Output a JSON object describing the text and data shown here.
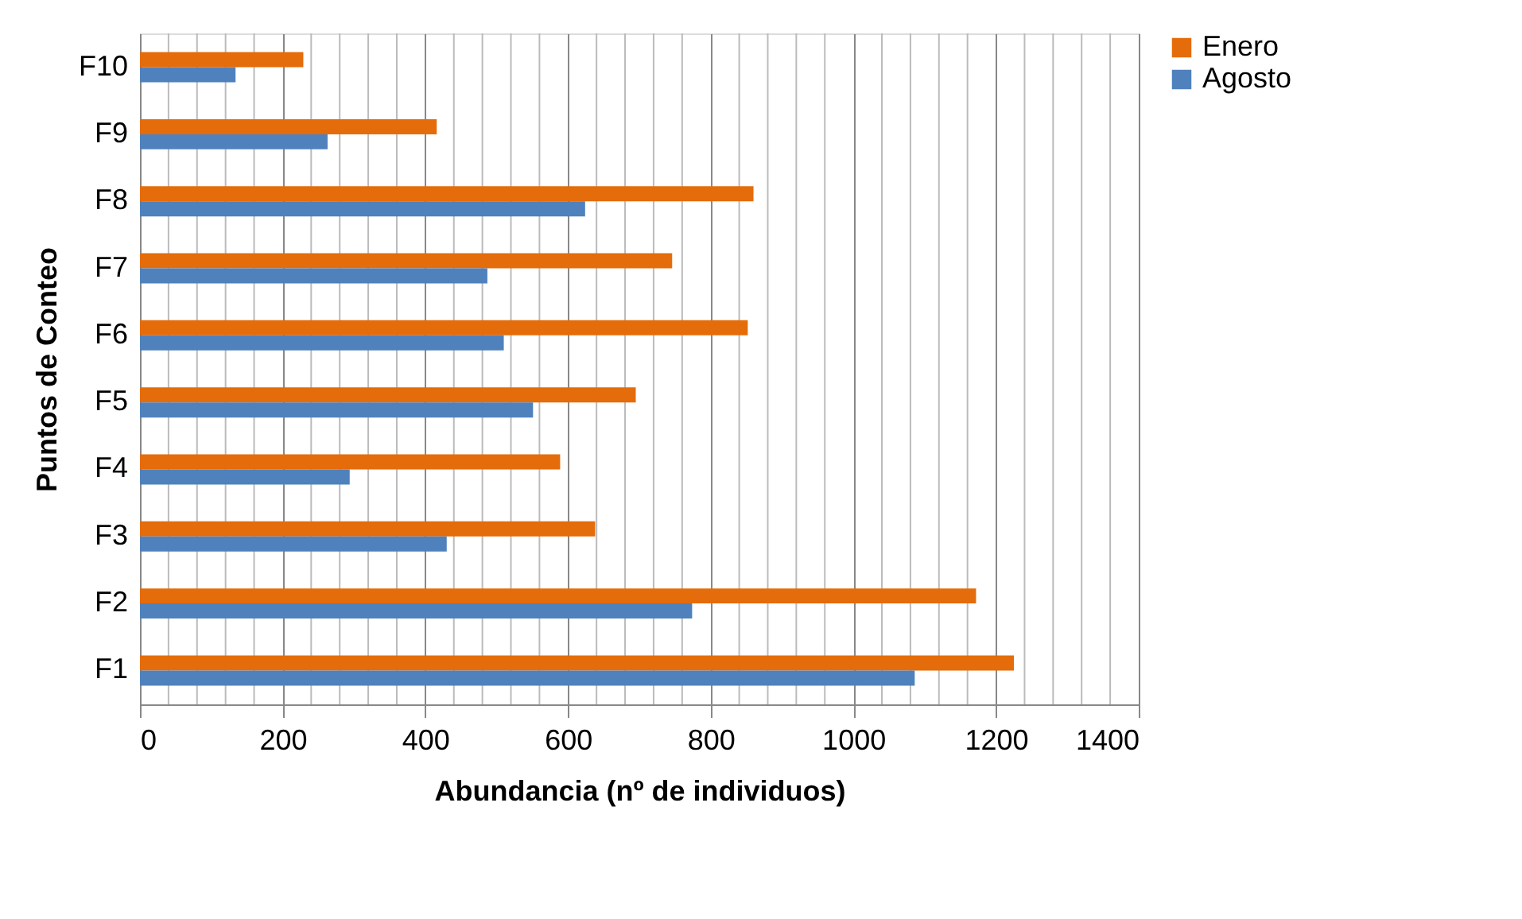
{
  "chart_data": {
    "type": "bar",
    "orientation": "horizontal",
    "xlabel": "Abundancia (nº de individuos)",
    "ylabel": "Puntos de Conteo",
    "categories": [
      "F10",
      "F9",
      "F8",
      "F7",
      "F6",
      "F5",
      "F4",
      "F3",
      "F2",
      "F1"
    ],
    "series": [
      {
        "name": "Enero",
        "color": "#e46c0a",
        "values": [
          229,
          416,
          860,
          746,
          852,
          695,
          589,
          638,
          1172,
          1225
        ]
      },
      {
        "name": "Agosto",
        "color": "#4f81bd",
        "values": [
          134,
          263,
          624,
          487,
          510,
          551,
          294,
          430,
          774,
          1086
        ]
      }
    ],
    "xlim": [
      0,
      1400
    ],
    "xticks": [
      0,
      {
        "value": 40,
        "label": null
      },
      {
        "value": 80,
        "label": null
      },
      {
        "value": 120,
        "label": null
      },
      {
        "value": 160,
        "label": null
      },
      200,
      {
        "value": 240,
        "label": null
      },
      {
        "value": 280,
        "label": null
      },
      {
        "value": 320,
        "label": null
      },
      {
        "value": 360,
        "label": null
      },
      400,
      {
        "value": 440,
        "label": null
      },
      {
        "value": 480,
        "label": null
      },
      {
        "value": 520,
        "label": null
      },
      {
        "value": 560,
        "label": null
      },
      600,
      {
        "value": 640,
        "label": null
      },
      {
        "value": 680,
        "label": null
      },
      {
        "value": 720,
        "label": null
      },
      {
        "value": 760,
        "label": null
      },
      800,
      {
        "value": 840,
        "label": null
      },
      {
        "value": 880,
        "label": null
      },
      {
        "value": 920,
        "label": null
      },
      {
        "value": 960,
        "label": null
      },
      1000,
      {
        "value": 1040,
        "label": null
      },
      {
        "value": 1080,
        "label": null
      },
      {
        "value": 1120,
        "label": null
      },
      {
        "value": 1160,
        "label": null
      },
      1200,
      {
        "value": 1240,
        "label": null
      },
      {
        "value": 1280,
        "label": null
      },
      {
        "value": 1320,
        "label": null
      },
      {
        "value": 1360,
        "label": null
      },
      1400
    ],
    "grid": "x",
    "legend": "right"
  }
}
